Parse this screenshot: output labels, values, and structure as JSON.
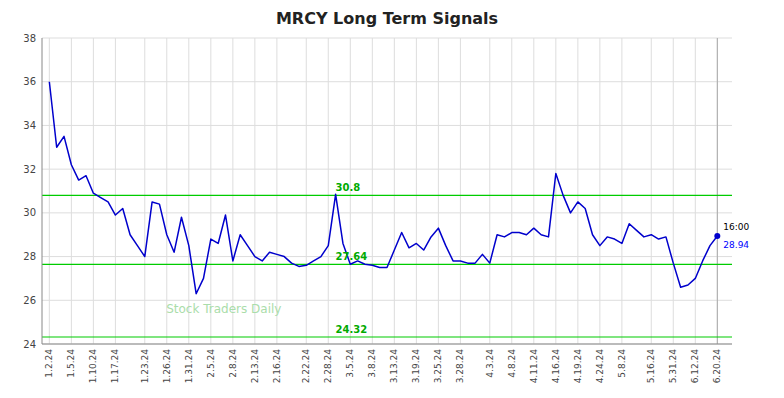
{
  "chart_data": {
    "type": "line",
    "title": "MRCY Long Term Signals",
    "categories": [
      "1.2.24",
      null,
      null,
      "1.5.24",
      null,
      null,
      "1.10.24",
      null,
      null,
      "1.17.24",
      null,
      null,
      null,
      "1.23.24",
      null,
      null,
      "1.26.24",
      null,
      null,
      "1.31.24",
      null,
      null,
      "2.5.24",
      null,
      null,
      "2.8.24",
      null,
      null,
      "2.13.24",
      null,
      null,
      "2.16.24",
      null,
      null,
      null,
      "2.22.24",
      null,
      null,
      "2.28.24",
      null,
      null,
      "3.5.24",
      null,
      null,
      "3.8.24",
      null,
      null,
      "3.13.24",
      null,
      null,
      "3.19.24",
      null,
      null,
      "3.25.24",
      null,
      null,
      "3.28.24",
      null,
      null,
      null,
      "4.3.24",
      null,
      null,
      "4.8.24",
      null,
      null,
      "4.11.24",
      null,
      null,
      "4.16.24",
      null,
      null,
      "4.19.24",
      null,
      null,
      "4.24.24",
      null,
      null,
      "5.8.24",
      null,
      null,
      null,
      "5.16.24",
      null,
      null,
      "5.31.24",
      null,
      null,
      "6.12.24",
      null,
      null,
      "6.20.24"
    ],
    "series": [
      {
        "color": "#0000cc",
        "marker": "last",
        "values": [
          36.0,
          33.0,
          33.5,
          32.2,
          31.5,
          31.7,
          30.9,
          30.7,
          30.5,
          29.9,
          30.2,
          29.0,
          28.5,
          28.0,
          30.5,
          30.4,
          29.0,
          28.2,
          29.8,
          28.5,
          26.3,
          27.0,
          28.8,
          28.6,
          29.9,
          27.8,
          29.0,
          28.5,
          28.0,
          27.8,
          28.2,
          28.1,
          28.0,
          27.7,
          27.55,
          27.6,
          27.8,
          28.0,
          28.5,
          30.85,
          28.6,
          27.65,
          27.8,
          27.65,
          27.6,
          27.5,
          27.5,
          28.3,
          29.1,
          28.4,
          28.6,
          28.3,
          28.9,
          29.3,
          28.5,
          27.8,
          27.8,
          27.7,
          27.7,
          28.1,
          27.7,
          29.0,
          28.9,
          29.1,
          29.1,
          29.0,
          29.3,
          29.0,
          28.9,
          31.8,
          30.8,
          30.0,
          30.5,
          30.2,
          29.0,
          28.5,
          28.9,
          28.8,
          28.6,
          29.5,
          29.2,
          28.9,
          29.0,
          28.8,
          28.9,
          27.7,
          26.6,
          26.7,
          27.0,
          27.8,
          28.5,
          28.94
        ]
      }
    ],
    "ylim": [
      24,
      38
    ],
    "yticks": [
      24,
      26,
      28,
      30,
      32,
      34,
      36,
      38
    ],
    "grid": true,
    "annotations": [
      {
        "type": "hline",
        "y": 30.8,
        "text": "30.8",
        "x": 39,
        "color": "#00cc00"
      },
      {
        "type": "hline",
        "y": 27.64,
        "text": "27.64",
        "x": 39,
        "color": "#00cc00"
      },
      {
        "type": "hline",
        "y": 24.32,
        "text": "24.32",
        "x": 39,
        "color": "#00cc00"
      },
      {
        "type": "end_label",
        "text": "16:00",
        "color": "#000000"
      },
      {
        "type": "end_label",
        "text": "28.94",
        "y": 28.94,
        "color": "#0000ff"
      },
      {
        "type": "watermark",
        "text": "Stock Traders Daily",
        "color": "#aaddaa"
      }
    ]
  }
}
